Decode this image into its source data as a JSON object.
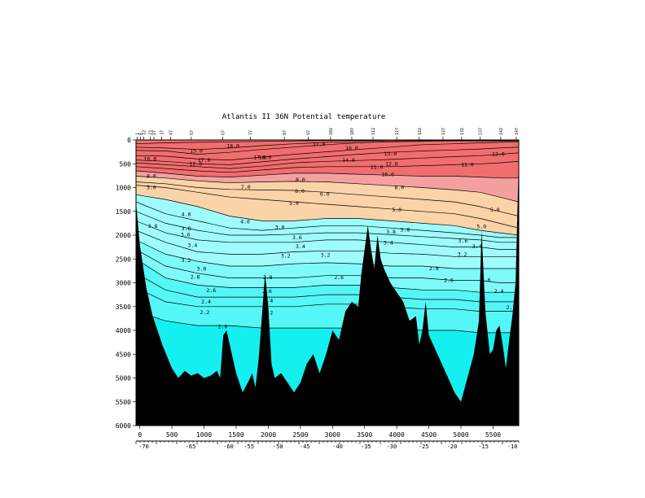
{
  "chart_data": {
    "type": "heatmap",
    "title": "Atlantis II 36N Potential temperature",
    "xlabel": "",
    "ylabel": "",
    "xlim": [
      -60,
      5900
    ],
    "ylim": [
      0,
      6000
    ],
    "y_inverted": true,
    "x_ticks": [
      0,
      500,
      1000,
      1500,
      2000,
      2500,
      3000,
      3500,
      4000,
      4500,
      5000,
      5500
    ],
    "y_ticks": [
      0,
      500,
      1000,
      1500,
      2000,
      2500,
      3000,
      3500,
      4000,
      4500,
      5000,
      5500,
      6000
    ],
    "lon_ticks": [
      {
        "x": 60,
        "label": "-70"
      },
      {
        "x": 790,
        "label": "-65"
      },
      {
        "x": 1380,
        "label": "-60"
      },
      {
        "x": 1700,
        "label": "-55"
      },
      {
        "x": 2150,
        "label": "-50"
      },
      {
        "x": 2570,
        "label": "-45"
      },
      {
        "x": 3080,
        "label": "-40"
      },
      {
        "x": 3520,
        "label": "-35"
      },
      {
        "x": 3920,
        "label": "-30"
      },
      {
        "x": 4420,
        "label": "-25"
      },
      {
        "x": 4860,
        "label": "-20"
      },
      {
        "x": 5350,
        "label": "-15"
      },
      {
        "x": 5800,
        "label": "-10"
      }
    ],
    "station_ticks": [
      {
        "x": -40,
        "label": "1"
      },
      {
        "x": 10,
        "label": "6"
      },
      {
        "x": 60,
        "label": "12"
      },
      {
        "x": 160,
        "label": "23"
      },
      {
        "x": 220,
        "label": "27"
      },
      {
        "x": 340,
        "label": "37"
      },
      {
        "x": 480,
        "label": "47"
      },
      {
        "x": 800,
        "label": "57"
      },
      {
        "x": 1290,
        "label": "67"
      },
      {
        "x": 1720,
        "label": "77"
      },
      {
        "x": 2250,
        "label": "87"
      },
      {
        "x": 2620,
        "label": "97"
      },
      {
        "x": 2970,
        "label": "102"
      },
      {
        "x": 3300,
        "label": "107"
      },
      {
        "x": 3630,
        "label": "112"
      },
      {
        "x": 4000,
        "label": "117"
      },
      {
        "x": 4350,
        "label": "122"
      },
      {
        "x": 4720,
        "label": "127"
      },
      {
        "x": 5010,
        "label": "132"
      },
      {
        "x": 5300,
        "label": "137"
      },
      {
        "x": 5620,
        "label": "142"
      },
      {
        "x": 5860,
        "label": "147"
      }
    ],
    "color_bands": [
      {
        "range": "theta >= 10",
        "color": "#f26d6d"
      },
      {
        "range": "8 - 10",
        "color": "#f5a0a0"
      },
      {
        "range": "4 - 8",
        "color": "#fbd3a8"
      },
      {
        "range": "3 - 4",
        "color": "#9ffcfc"
      },
      {
        "range": "2.5 - 3",
        "color": "#7ffafa"
      },
      {
        "range": "2.0 - 2.5",
        "color": "#55f6f6"
      },
      {
        "range": "< 2.0",
        "color": "#14f0f0"
      }
    ],
    "isotherms": [
      {
        "level": "18.0",
        "depths": [
          80,
          60,
          50,
          40,
          30,
          20,
          10,
          10,
          5,
          5,
          5,
          5,
          5,
          5
        ]
      },
      {
        "level": "17.0",
        "depths": [
          150,
          170,
          200,
          170,
          120,
          80,
          50,
          30,
          20,
          15,
          10,
          10,
          10,
          10
        ]
      },
      {
        "level": "16.0",
        "depths": [
          220,
          230,
          300,
          260,
          200,
          150,
          100,
          60,
          40,
          30,
          20,
          20,
          20,
          20
        ]
      },
      {
        "level": "14.0",
        "depths": [
          330,
          340,
          400,
          420,
          360,
          300,
          250,
          200,
          150,
          100,
          80,
          60,
          50,
          40
        ]
      },
      {
        "level": "13.0",
        "depths": [
          420,
          450,
          500,
          520,
          460,
          400,
          350,
          300,
          260,
          230,
          210,
          190,
          170,
          150
        ]
      },
      {
        "level": "12.0",
        "depths": [
          480,
          520,
          560,
          600,
          550,
          480,
          450,
          430,
          410,
          380,
          350,
          330,
          300,
          270
        ]
      },
      {
        "level": "11.0",
        "depths": [
          560,
          600,
          650,
          680,
          630,
          580,
          560,
          560,
          560,
          540,
          520,
          500,
          480,
          450
        ]
      },
      {
        "level": "10.0",
        "depths": [
          650,
          700,
          760,
          780,
          740,
          700,
          700,
          720,
          740,
          760,
          760,
          780,
          800,
          800
        ]
      },
      {
        "level": "8.0",
        "depths": [
          760,
          800,
          860,
          900,
          880,
          870,
          880,
          920,
          960,
          1000,
          1050,
          1100,
          1200,
          1300
        ]
      },
      {
        "level": "6.0",
        "depths": [
          880,
          920,
          1000,
          1040,
          1050,
          1060,
          1100,
          1150,
          1200,
          1250,
          1300,
          1400,
          1500,
          1600
        ]
      },
      {
        "level": "5.0",
        "depths": [
          950,
          1000,
          1100,
          1200,
          1250,
          1300,
          1350,
          1400,
          1450,
          1500,
          1550,
          1650,
          1750,
          1850
        ]
      },
      {
        "level": "4.0",
        "depths": [
          1150,
          1250,
          1400,
          1600,
          1700,
          1700,
          1650,
          1650,
          1700,
          1750,
          1800,
          1900,
          1950,
          2000
        ]
      },
      {
        "level": "3.8",
        "depths": [
          1300,
          1550,
          1700,
          1850,
          1900,
          1850,
          1800,
          1800,
          1850,
          1900,
          1950,
          2000,
          2050,
          2050
        ]
      },
      {
        "level": "3.6",
        "depths": [
          1500,
          1750,
          1900,
          2000,
          2000,
          1980,
          1950,
          1950,
          1990,
          2030,
          2070,
          2100,
          2150,
          2150
        ]
      },
      {
        "level": "3.4",
        "depths": [
          1700,
          1950,
          2100,
          2150,
          2150,
          2150,
          2100,
          2100,
          2150,
          2200,
          2250,
          2250,
          2300,
          2300
        ]
      },
      {
        "level": "3.2",
        "depths": [
          1900,
          2150,
          2350,
          2400,
          2400,
          2350,
          2330,
          2330,
          2380,
          2400,
          2450,
          2450,
          2450,
          2450
        ]
      },
      {
        "level": "3.0",
        "depths": [
          2100,
          2400,
          2550,
          2650,
          2650,
          2600,
          2580,
          2600,
          2650,
          2650,
          2700,
          2700,
          2700,
          2700
        ]
      },
      {
        "level": "2.8",
        "depths": [
          2300,
          2650,
          2800,
          2900,
          2900,
          2900,
          2850,
          2850,
          2900,
          2900,
          2950,
          2950,
          3000,
          3000
        ]
      },
      {
        "level": "2.6",
        "depths": [
          2500,
          2900,
          3050,
          3100,
          3100,
          3100,
          3050,
          3050,
          3100,
          3150,
          3150,
          3200,
          3200,
          3200
        ]
      },
      {
        "level": "2.4",
        "depths": [
          2800,
          3150,
          3300,
          3300,
          3300,
          3300,
          3250,
          3250,
          3300,
          3350,
          3350,
          3400,
          3400,
          3400
        ]
      },
      {
        "level": "2.2",
        "depths": [
          3100,
          3400,
          3500,
          3500,
          3500,
          3500,
          3450,
          3450,
          3500,
          3550,
          3550,
          3600,
          3600,
          3600
        ]
      },
      {
        "level": "2.0",
        "depths": [
          3600,
          3800,
          3900,
          3900,
          3950,
          3950,
          3950,
          3950,
          3950,
          4000,
          4000,
          4050,
          4050,
          4050
        ]
      }
    ],
    "isotherm_x": [
      -60,
      400,
      900,
      1400,
      1900,
      2400,
      2900,
      3400,
      3900,
      4400,
      4900,
      5300,
      5600,
      5900
    ],
    "bathymetry": [
      [
        -60,
        1300
      ],
      [
        0,
        2200
      ],
      [
        100,
        3100
      ],
      [
        200,
        3700
      ],
      [
        350,
        4300
      ],
      [
        500,
        4800
      ],
      [
        600,
        5000
      ],
      [
        700,
        4850
      ],
      [
        800,
        4950
      ],
      [
        900,
        4900
      ],
      [
        1000,
        5000
      ],
      [
        1100,
        4950
      ],
      [
        1200,
        4850
      ],
      [
        1250,
        5000
      ],
      [
        1300,
        4100
      ],
      [
        1350,
        4000
      ],
      [
        1400,
        4300
      ],
      [
        1500,
        4900
      ],
      [
        1600,
        5300
      ],
      [
        1700,
        5050
      ],
      [
        1750,
        4900
      ],
      [
        1800,
        5200
      ],
      [
        1850,
        4600
      ],
      [
        1900,
        3700
      ],
      [
        1950,
        2800
      ],
      [
        2000,
        3500
      ],
      [
        2050,
        4700
      ],
      [
        2100,
        5000
      ],
      [
        2200,
        4900
      ],
      [
        2300,
        5100
      ],
      [
        2400,
        5300
      ],
      [
        2500,
        5100
      ],
      [
        2600,
        4700
      ],
      [
        2700,
        4500
      ],
      [
        2800,
        4900
      ],
      [
        2900,
        4500
      ],
      [
        3000,
        4000
      ],
      [
        3100,
        4200
      ],
      [
        3200,
        3600
      ],
      [
        3300,
        3400
      ],
      [
        3400,
        3500
      ],
      [
        3450,
        2800
      ],
      [
        3500,
        2300
      ],
      [
        3550,
        1800
      ],
      [
        3600,
        2300
      ],
      [
        3650,
        2700
      ],
      [
        3700,
        2000
      ],
      [
        3750,
        2500
      ],
      [
        3800,
        2700
      ],
      [
        3900,
        3000
      ],
      [
        4000,
        3200
      ],
      [
        4100,
        3400
      ],
      [
        4200,
        3800
      ],
      [
        4300,
        3700
      ],
      [
        4350,
        4300
      ],
      [
        4400,
        4000
      ],
      [
        4450,
        3400
      ],
      [
        4500,
        4100
      ],
      [
        4600,
        4400
      ],
      [
        4700,
        4700
      ],
      [
        4800,
        5000
      ],
      [
        4900,
        5300
      ],
      [
        5000,
        5500
      ],
      [
        5100,
        5000
      ],
      [
        5200,
        4500
      ],
      [
        5280,
        3800
      ],
      [
        5320,
        1900
      ],
      [
        5380,
        3600
      ],
      [
        5450,
        4500
      ],
      [
        5500,
        4400
      ],
      [
        5550,
        4000
      ],
      [
        5600,
        3900
      ],
      [
        5650,
        4300
      ],
      [
        5700,
        4800
      ],
      [
        5750,
        4200
      ],
      [
        5800,
        3700
      ],
      [
        5850,
        3000
      ],
      [
        5900,
        400
      ]
    ],
    "contour_labels": [
      {
        "x": 1450,
        "y": 130,
        "text": "18.0"
      },
      {
        "x": 1870,
        "y": 370,
        "text": "17.0"
      },
      {
        "x": 1950,
        "y": 370,
        "text": "16.0"
      },
      {
        "x": 1000,
        "y": 430,
        "text": "17.0"
      },
      {
        "x": 880,
        "y": 230,
        "text": "15.0"
      },
      {
        "x": 870,
        "y": 500,
        "text": "12.0"
      },
      {
        "x": 2790,
        "y": 90,
        "text": "17.0"
      },
      {
        "x": 3300,
        "y": 170,
        "text": "16.0"
      },
      {
        "x": 3900,
        "y": 290,
        "text": "13.0"
      },
      {
        "x": 3250,
        "y": 430,
        "text": "14.0"
      },
      {
        "x": 5100,
        "y": 520,
        "text": "11.0"
      },
      {
        "x": 5580,
        "y": 300,
        "text": "12.0"
      },
      {
        "x": 3690,
        "y": 570,
        "text": "11.0"
      },
      {
        "x": 3920,
        "y": 500,
        "text": "12.0"
      },
      {
        "x": 3860,
        "y": 730,
        "text": "10.0"
      },
      {
        "x": 4040,
        "y": 1000,
        "text": "8.0"
      },
      {
        "x": 2500,
        "y": 840,
        "text": "8.0"
      },
      {
        "x": 2490,
        "y": 1080,
        "text": "6.0"
      },
      {
        "x": 2880,
        "y": 1140,
        "text": "6.0"
      },
      {
        "x": 2400,
        "y": 1330,
        "text": "5.0"
      },
      {
        "x": 1650,
        "y": 990,
        "text": "7.0"
      },
      {
        "x": 160,
        "y": 400,
        "text": "10.0"
      },
      {
        "x": 180,
        "y": 760,
        "text": "8.0"
      },
      {
        "x": 180,
        "y": 1000,
        "text": "5.0"
      },
      {
        "x": 4000,
        "y": 1470,
        "text": "5.0"
      },
      {
        "x": 5320,
        "y": 1820,
        "text": "5.0"
      },
      {
        "x": 5530,
        "y": 1470,
        "text": "5.0"
      },
      {
        "x": 1640,
        "y": 1720,
        "text": "4.0"
      },
      {
        "x": 720,
        "y": 1560,
        "text": "4.0"
      },
      {
        "x": 200,
        "y": 1810,
        "text": "3.8"
      },
      {
        "x": 720,
        "y": 1860,
        "text": "3.8"
      },
      {
        "x": 710,
        "y": 1990,
        "text": "3.6"
      },
      {
        "x": 820,
        "y": 2210,
        "text": "3.4"
      },
      {
        "x": 720,
        "y": 2530,
        "text": "3.2"
      },
      {
        "x": 960,
        "y": 2710,
        "text": "3.0"
      },
      {
        "x": 860,
        "y": 2880,
        "text": "2.8"
      },
      {
        "x": 2180,
        "y": 1840,
        "text": "3.8"
      },
      {
        "x": 2450,
        "y": 2050,
        "text": "3.6"
      },
      {
        "x": 2500,
        "y": 2240,
        "text": "3.4"
      },
      {
        "x": 2270,
        "y": 2440,
        "text": "3.2"
      },
      {
        "x": 2890,
        "y": 2420,
        "text": "3.2"
      },
      {
        "x": 3910,
        "y": 1930,
        "text": "3.8"
      },
      {
        "x": 4130,
        "y": 1890,
        "text": "3.8"
      },
      {
        "x": 3870,
        "y": 2160,
        "text": "3.4"
      },
      {
        "x": 5030,
        "y": 2120,
        "text": "3.6"
      },
      {
        "x": 5250,
        "y": 2240,
        "text": "3.4"
      },
      {
        "x": 5020,
        "y": 2400,
        "text": "3.2"
      },
      {
        "x": 4580,
        "y": 2700,
        "text": "2.8"
      },
      {
        "x": 4810,
        "y": 2950,
        "text": "2.6"
      },
      {
        "x": 5390,
        "y": 2940,
        "text": "2.6"
      },
      {
        "x": 5590,
        "y": 3180,
        "text": "2.4"
      },
      {
        "x": 5780,
        "y": 3520,
        "text": "2.2"
      },
      {
        "x": 3100,
        "y": 2890,
        "text": "2.6"
      },
      {
        "x": 1990,
        "y": 2890,
        "text": "2.8"
      },
      {
        "x": 1980,
        "y": 3180,
        "text": "2.6"
      },
      {
        "x": 2000,
        "y": 3380,
        "text": "2.4"
      },
      {
        "x": 2000,
        "y": 3630,
        "text": "2.2"
      },
      {
        "x": 1110,
        "y": 3160,
        "text": "2.6"
      },
      {
        "x": 1030,
        "y": 3400,
        "text": "2.4"
      },
      {
        "x": 1010,
        "y": 3620,
        "text": "2.2"
      },
      {
        "x": 1290,
        "y": 3920,
        "text": "2.0"
      }
    ]
  }
}
